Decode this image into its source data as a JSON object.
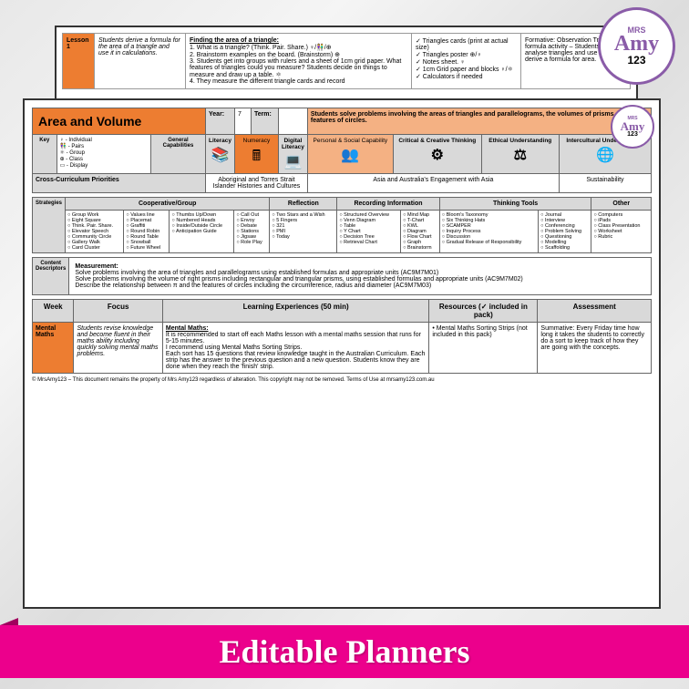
{
  "logo": {
    "mrs": "MRS",
    "amy": "Amy",
    "num": "123"
  },
  "back": {
    "lesson": "Lesson 1",
    "focus": "Students derive a formula for the area of a triangle and use it in calculations.",
    "finding_title": "Finding the area of a triangle:",
    "steps": [
      "1. What is a triangle? (Think. Pair. Share.) ♀/👫/⊕",
      "2. Brainstorm examples on the board. (Brainstorm) ⊕",
      "3. Students get into groups with rulers and a sheet of 1cm grid paper. What features of triangles could you measure? Students decide on things to measure and draw up a table. ⚛",
      "4. They measure the different triangle cards and record"
    ],
    "resources": [
      "✓ Triangles cards (print at actual size)",
      "✓ Triangles poster ⊕/♀",
      "✓ Notes sheet. ♀",
      "✓ 1cm Grid paper and blocks ♀/⚛",
      "✓ Calculators if needed"
    ],
    "assess": "Formative: Observation Triangle formula activity – Students can analyse triangles and use them to derive a formula for area."
  },
  "front": {
    "title": "Area and Volume",
    "year_label": "Year:",
    "year": "7",
    "term_label": "Term:",
    "overview": "Students solve problems involving the areas of triangles and parallelograms, the volumes of prisms and the features of circles.",
    "key_label": "Key",
    "key_items": [
      "♀ - Individual",
      "👫 - Pairs",
      "⚛ - Group",
      "⊕ - Class",
      "▭ - Display"
    ],
    "gencap_label": "General Capabilities",
    "caps": [
      {
        "t": "Literacy",
        "i": "📚"
      },
      {
        "t": "Numeracy",
        "i": "🖩"
      },
      {
        "t": "Digital Literacy",
        "i": "💻"
      },
      {
        "t": "Personal & Social Capability",
        "i": "👥"
      },
      {
        "t": "Critical & Creative Thinking",
        "i": "⚙"
      },
      {
        "t": "Ethical Understanding",
        "i": "⚖"
      },
      {
        "t": "Intercultural Understanding",
        "i": "🌐"
      }
    ],
    "ccp_label": "Cross-Curriculum Priorities",
    "ccp": [
      "Aboriginal and Torres Strait Islander Histories and Cultures",
      "Asia and Australia's Engagement with Asia",
      "Sustainability"
    ],
    "strategies_label": "Strategies",
    "strat_headers": [
      "Cooperative/Group",
      "",
      "",
      "Reflection",
      "Recording Information",
      "",
      "Thinking Tools",
      "",
      "Other"
    ],
    "strat_cols": [
      [
        "Group Work",
        "Eight Square",
        "Think. Pair. Share.",
        "Elevator Speech",
        "Community Circle",
        "Gallery Walk",
        "Card Cluster"
      ],
      [
        "Values line",
        "Placemat",
        "Graffiti",
        "Round Robin",
        "Round Table",
        "Snowball",
        "Future Wheel"
      ],
      [
        "Thumbs Up/Down",
        "Numbered Heads",
        "Inside/Outside Circle",
        "Anticipation Guide"
      ],
      [
        "Call Out",
        "Envoy",
        "Debate",
        "Stations",
        "Jigsaw",
        "Role Play"
      ],
      [
        "Two Stars and a Wish",
        "5 Fingers",
        "321",
        "PMI",
        "Today"
      ],
      [
        "Structured Overview",
        "Venn Diagram",
        "Table",
        "Y Chart",
        "Decision Tree",
        "Retrieval Chart"
      ],
      [
        "Mind Map",
        "T-Chart",
        "KWL",
        "Diagram",
        "Flow Chart",
        "Graph",
        "Brainstorm"
      ],
      [
        "Bloom's Taxonomy",
        "Six Thinking Hats",
        "SCAMPER",
        "Inquiry Process",
        "Discussion",
        "Gradual Release of Responsibility"
      ],
      [
        "Journal",
        "Interview",
        "Conferencing",
        "Problem Solving",
        "Questioning",
        "Modelling",
        "Scaffolding"
      ],
      [
        "Computers",
        "iPads",
        "Class Presentation",
        "Worksheet",
        "Rubric"
      ]
    ],
    "content_label": "Content Descriptors",
    "content_title": "Measurement:",
    "content": [
      "Solve problems involving the area of triangles and parallelograms using established formulas and appropriate units (AC9M7M01)",
      "Solve problems involving the volume of right prisms including rectangular and triangular prisms, using established formulas and appropriate units (AC9M7M02)",
      "Describe the relationship between π and the features of circles including the circumference, radius and diameter (AC9M7M03)"
    ],
    "week_headers": [
      "Week",
      "Focus",
      "Learning Experiences (50 min)",
      "Resources (✓ included in pack)",
      "Assessment"
    ],
    "mental": "Mental Maths",
    "mental_focus": "Students revise knowledge and become fluent in their maths ability including quickly solving mental maths problems.",
    "mental_title": "Mental Maths:",
    "mental_body": "It is recommended to start off each Maths lesson with a mental maths session that runs for 5-15 minutes.\nI recommend using Mental Maths Sorting Strips.\nEach sort has 15 questions that review knowledge taught in the Australian Curriculum. Each strip has the answer to the previous question and a new question. Students know they are done when they reach the 'finish' strip.",
    "mental_res": "• Mental Maths Sorting Strips (not included in this pack)",
    "mental_assess": "Summative: Every Friday time how long it takes the students to correctly do a sort to keep track of how they are going with the concepts.",
    "copyright": "© MrsAmy123 – This document remains the property of Mrs Amy123 regardless of alteration. This copyright may not be removed. Terms of Use at mrsamy123.com.au"
  },
  "banner": "Editable Planners"
}
